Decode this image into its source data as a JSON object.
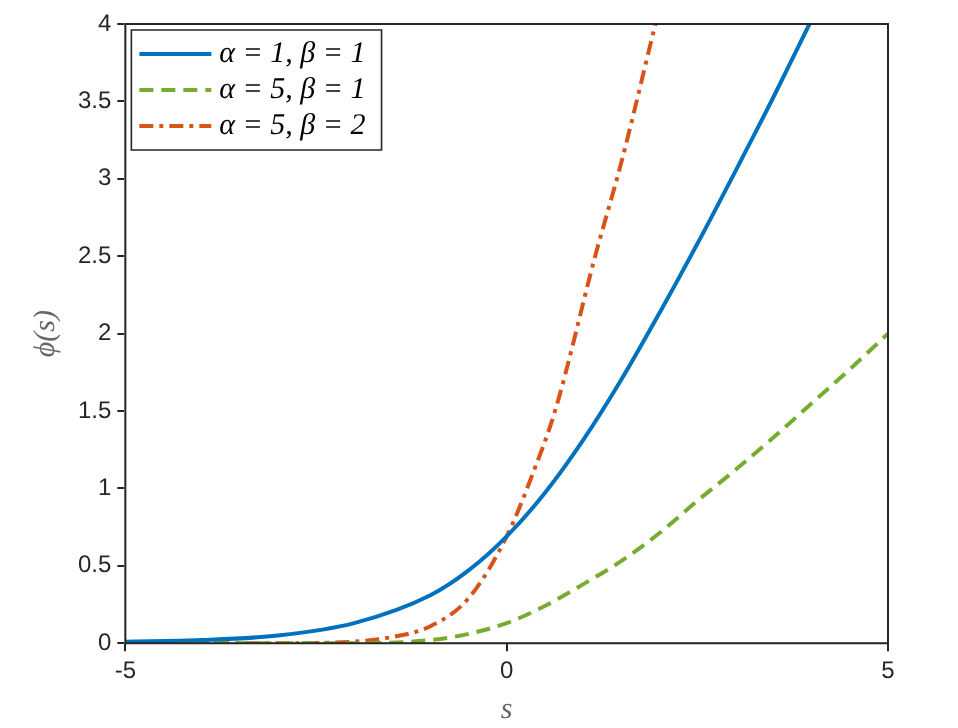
{
  "chart_data": {
    "type": "line",
    "xlabel": "s",
    "ylabel": "ϕ(s)",
    "xlim": [
      -5,
      5
    ],
    "ylim": [
      0,
      4
    ],
    "xticks": [
      -5,
      0,
      5
    ],
    "yticks": [
      0,
      0.5,
      1,
      1.5,
      2,
      2.5,
      3,
      3.5,
      4
    ],
    "grid": false,
    "legend": "top left",
    "marker": "none",
    "series": [
      {
        "name": "α = 1, β = 1",
        "color": "#0072bd",
        "line_style": "solid",
        "x": [
          -5,
          -4,
          -3,
          -2,
          -1,
          -0.5,
          0,
          0.5,
          1,
          1.5,
          2,
          2.5,
          3,
          3.5,
          3.97
        ],
        "values": [
          0.01,
          0.02,
          0.05,
          0.13,
          0.31,
          0.47,
          0.69,
          0.97,
          1.31,
          1.7,
          2.13,
          2.58,
          3.05,
          3.53,
          4
        ]
      },
      {
        "name": "α = 5, β = 1",
        "color": "#77ac30",
        "line_style": "dashed",
        "x": [
          -5,
          -3,
          -2,
          -1,
          -0.5,
          0,
          0.5,
          1,
          1.5,
          2,
          2.5,
          3,
          3.5,
          4,
          4.5,
          5
        ],
        "values": [
          0,
          0,
          0,
          0.02,
          0.06,
          0.13,
          0.24,
          0.38,
          0.53,
          0.71,
          0.92,
          1.12,
          1.33,
          1.55,
          1.77,
          2
        ]
      },
      {
        "name": "α = 5, β = 2",
        "color": "#d95319",
        "line_style": "dashdot",
        "x": [
          -5,
          -3,
          -2,
          -1.5,
          -1,
          -0.5,
          0,
          0.33,
          0.64,
          1.16,
          1.5,
          1.95
        ],
        "values": [
          0,
          0,
          0.01,
          0.04,
          0.11,
          0.29,
          0.69,
          1.08,
          1.51,
          2.5,
          3.1,
          4
        ]
      }
    ]
  }
}
